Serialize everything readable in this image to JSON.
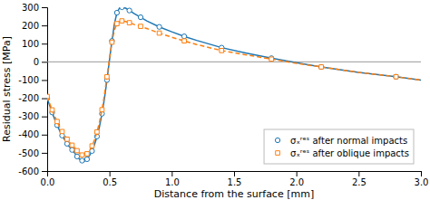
{
  "chart_data": {
    "type": "line",
    "xlabel": "Distance from the surface [mm]",
    "ylabel": "Residual stress [MPa]",
    "xlim": [
      0,
      3
    ],
    "ylim": [
      -600,
      300
    ],
    "xticks": [
      {
        "value": 0,
        "label": "0.0"
      },
      0.5,
      {
        "value": 1,
        "label": "1.0"
      },
      1.5,
      {
        "value": 2,
        "label": "2.0"
      },
      2.5,
      {
        "value": 3,
        "label": "3.0"
      }
    ],
    "yticks": [
      -600,
      -500,
      -400,
      -300,
      -200,
      -100,
      0,
      100,
      200,
      300
    ],
    "grid": false,
    "legend": "lower right",
    "series": [
      {
        "type": "line",
        "line_style": "solid",
        "x": [
          0.0,
          0.02,
          0.04,
          0.06,
          0.08,
          0.1,
          0.12,
          0.14,
          0.16,
          0.18,
          0.2,
          0.22,
          0.24,
          0.26,
          0.28,
          0.3,
          0.32,
          0.34,
          0.36,
          0.38,
          0.4,
          0.42,
          0.44,
          0.46,
          0.48,
          0.5,
          0.52,
          0.54,
          0.56,
          0.58,
          0.6,
          0.63,
          0.66,
          0.7,
          0.75,
          0.8,
          0.9,
          1.0,
          1.1,
          1.2,
          1.4,
          1.6,
          1.8,
          2.0,
          2.2,
          2.5,
          2.8,
          3.0
        ],
        "values": [
          -200,
          -240,
          -278,
          -315,
          -348,
          -378,
          -405,
          -428,
          -450,
          -468,
          -484,
          -500,
          -520,
          -535,
          -543,
          -545,
          -535,
          -515,
          -490,
          -455,
          -410,
          -355,
          -285,
          -200,
          -100,
          10,
          115,
          210,
          270,
          295,
          300,
          295,
          282,
          265,
          245,
          225,
          192,
          165,
          140,
          118,
          78,
          48,
          20,
          -5,
          -28,
          -58,
          -82,
          -100
        ]
      },
      {
        "type": "scatter",
        "name": "σₓʳᵉˢ after normal impacts",
        "marker": "circle",
        "x": [
          0.0,
          0.04,
          0.08,
          0.12,
          0.16,
          0.2,
          0.24,
          0.28,
          0.32,
          0.36,
          0.4,
          0.44,
          0.48,
          0.52,
          0.56,
          0.6,
          0.66,
          0.75,
          0.9,
          1.1,
          1.4,
          1.8,
          2.2,
          2.8
        ],
        "values": [
          -200,
          -278,
          -348,
          -405,
          -450,
          -484,
          -520,
          -543,
          -535,
          -490,
          -410,
          -285,
          -100,
          115,
          270,
          300,
          282,
          245,
          192,
          140,
          78,
          20,
          -28,
          -82
        ]
      },
      {
        "type": "line",
        "line_style": "dashed",
        "x": [
          0.0,
          0.02,
          0.04,
          0.06,
          0.08,
          0.1,
          0.12,
          0.14,
          0.16,
          0.18,
          0.2,
          0.22,
          0.24,
          0.26,
          0.28,
          0.3,
          0.32,
          0.34,
          0.36,
          0.38,
          0.4,
          0.42,
          0.44,
          0.46,
          0.48,
          0.5,
          0.52,
          0.54,
          0.56,
          0.58,
          0.6,
          0.63,
          0.66,
          0.7,
          0.75,
          0.8,
          0.9,
          1.0,
          1.1,
          1.2,
          1.4,
          1.6,
          1.8,
          2.0,
          2.2,
          2.5,
          2.8,
          3.0
        ],
        "values": [
          -190,
          -228,
          -264,
          -298,
          -328,
          -358,
          -383,
          -405,
          -425,
          -443,
          -458,
          -472,
          -488,
          -503,
          -512,
          -515,
          -505,
          -488,
          -462,
          -428,
          -385,
          -330,
          -263,
          -180,
          -82,
          18,
          108,
          175,
          210,
          222,
          225,
          222,
          215,
          205,
          195,
          183,
          158,
          135,
          115,
          95,
          62,
          38,
          15,
          -8,
          -28,
          -58,
          -82,
          -100
        ]
      },
      {
        "type": "scatter",
        "name": "σₓʳᵉˢ after oblique impacts",
        "marker": "square",
        "x": [
          0.0,
          0.04,
          0.08,
          0.12,
          0.16,
          0.2,
          0.24,
          0.28,
          0.32,
          0.36,
          0.4,
          0.44,
          0.48,
          0.52,
          0.56,
          0.6,
          0.66,
          0.75,
          0.9,
          1.1,
          1.4,
          1.8,
          2.2,
          2.8
        ],
        "values": [
          -190,
          -264,
          -328,
          -383,
          -425,
          -458,
          -488,
          -512,
          -505,
          -462,
          -385,
          -263,
          -82,
          108,
          210,
          225,
          215,
          195,
          158,
          115,
          62,
          15,
          -28,
          -82
        ]
      },
      {
        "type": "hline",
        "values": [
          0
        ]
      }
    ]
  }
}
